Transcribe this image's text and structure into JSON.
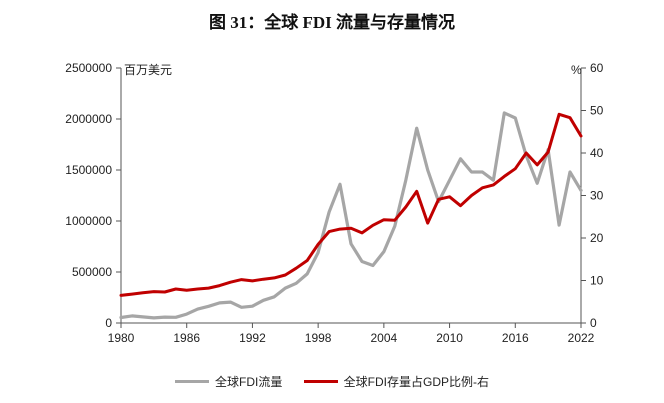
{
  "title": "图 31：全球 FDI 流量与存量情况",
  "chart_data": {
    "type": "line",
    "title": "图 31：全球 FDI 流量与存量情况",
    "left_unit": "百万美元",
    "right_unit": "%",
    "x": [
      1980,
      1981,
      1982,
      1983,
      1984,
      1985,
      1986,
      1987,
      1988,
      1989,
      1990,
      1991,
      1992,
      1993,
      1994,
      1995,
      1996,
      1997,
      1998,
      1999,
      2000,
      2001,
      2002,
      2003,
      2004,
      2005,
      2006,
      2007,
      2008,
      2009,
      2010,
      2011,
      2012,
      2013,
      2014,
      2015,
      2016,
      2017,
      2018,
      2019,
      2020,
      2021,
      2022
    ],
    "x_ticks": [
      "1980",
      "1986",
      "1992",
      "1998",
      "2004",
      "2010",
      "2016",
      "2022"
    ],
    "x_range": [
      1980,
      2022
    ],
    "y_left_ticks": [
      "0",
      "500000",
      "1000000",
      "1500000",
      "2000000",
      "2500000"
    ],
    "y_left_range": [
      0,
      2500000
    ],
    "y_right_ticks": [
      "0",
      "10",
      "20",
      "30",
      "40",
      "50",
      "60"
    ],
    "y_right_range": [
      0,
      60
    ],
    "series": [
      {
        "name": "全球FDI流量",
        "axis": "left",
        "color": "#a6a6a6",
        "values": [
          54000,
          70000,
          60000,
          50000,
          58000,
          56000,
          87000,
          136000,
          164000,
          197000,
          205000,
          154000,
          165000,
          223000,
          257000,
          342000,
          389000,
          481000,
          690000,
          1087000,
          1360000,
          776000,
          603000,
          564000,
          700000,
          950000,
          1400000,
          1910000,
          1500000,
          1190000,
          1400000,
          1610000,
          1480000,
          1480000,
          1400000,
          2060000,
          2010000,
          1640000,
          1370000,
          1700000,
          960000,
          1480000,
          1300000
        ]
      },
      {
        "name": "全球FDI存量占GDP比例-右",
        "axis": "right",
        "color": "#c00000",
        "values": [
          6.5,
          6.8,
          7.1,
          7.4,
          7.3,
          8.0,
          7.7,
          8.0,
          8.2,
          8.8,
          9.6,
          10.2,
          9.9,
          10.3,
          10.6,
          11.3,
          12.9,
          14.7,
          18.5,
          21.5,
          22.1,
          22.3,
          21.2,
          23.0,
          24.3,
          24.2,
          27.3,
          31.0,
          23.5,
          29.1,
          29.7,
          27.6,
          30.0,
          31.8,
          32.5,
          34.5,
          36.3,
          40.0,
          37.2,
          40.2,
          49.1,
          48.3,
          44.0
        ]
      }
    ],
    "legend_position": "bottom",
    "grid": false
  }
}
